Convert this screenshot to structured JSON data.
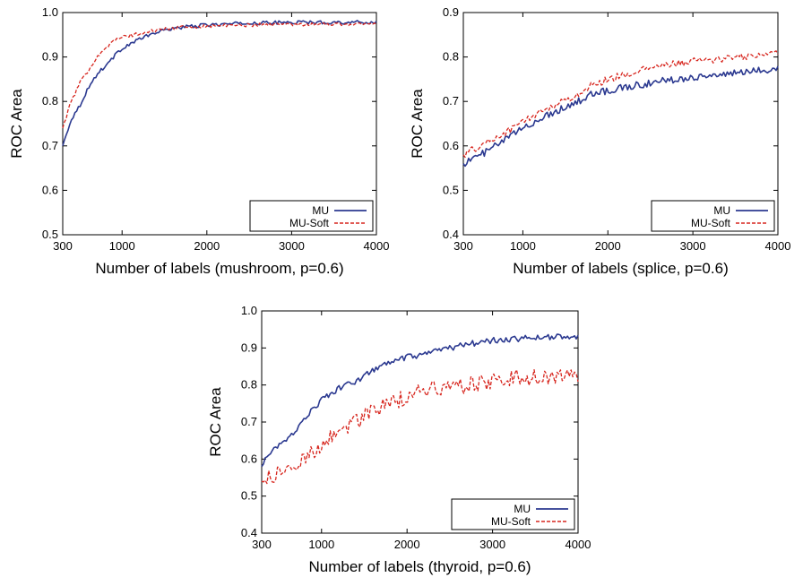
{
  "chart_data": [
    {
      "type": "line",
      "title": "",
      "xlabel": "Number of labels (mushroom, p=0.6)",
      "ylabel": "ROC Area",
      "xlim": [
        300,
        4000
      ],
      "ylim": [
        0.5,
        1.0
      ],
      "x_ticks": [
        300,
        1000,
        2000,
        3000,
        4000
      ],
      "x_tick_labels": [
        "300",
        "1000",
        "2000",
        "3000",
        "4000"
      ],
      "y_ticks": [
        0.5,
        0.6,
        0.7,
        0.8,
        0.9,
        1.0
      ],
      "y_tick_labels": [
        "0.5",
        "0.6",
        "0.7",
        "0.8",
        "0.9",
        "1.0"
      ],
      "grid": false,
      "legend_position": "bottom-right",
      "series": [
        {
          "name": "MU",
          "color": "#2b3990",
          "style": "solid",
          "x": [
            300,
            400,
            500,
            600,
            700,
            800,
            900,
            1000,
            1200,
            1400,
            1600,
            2000,
            2500,
            3000,
            3500,
            4000
          ],
          "y": [
            0.7,
            0.76,
            0.79,
            0.83,
            0.86,
            0.88,
            0.9,
            0.92,
            0.94,
            0.955,
            0.965,
            0.972,
            0.976,
            0.978,
            0.978,
            0.978
          ]
        },
        {
          "name": "MU-Soft",
          "color": "#d7261e",
          "style": "dashed",
          "x": [
            300,
            400,
            500,
            600,
            700,
            800,
            900,
            1000,
            1200,
            1400,
            1600,
            2000,
            2500,
            3000,
            3500,
            4000
          ],
          "y": [
            0.74,
            0.8,
            0.84,
            0.87,
            0.9,
            0.92,
            0.935,
            0.945,
            0.952,
            0.96,
            0.965,
            0.97,
            0.972,
            0.974,
            0.974,
            0.974
          ]
        }
      ]
    },
    {
      "type": "line",
      "title": "",
      "xlabel": "Number of labels (splice, p=0.6)",
      "ylabel": "ROC Area",
      "xlim": [
        300,
        4000
      ],
      "ylim": [
        0.4,
        0.9
      ],
      "x_ticks": [
        300,
        1000,
        2000,
        3000,
        4000
      ],
      "x_tick_labels": [
        "300",
        "1000",
        "2000",
        "3000",
        "4000"
      ],
      "y_ticks": [
        0.4,
        0.5,
        0.6,
        0.7,
        0.8,
        0.9
      ],
      "y_tick_labels": [
        "0.4",
        "0.5",
        "0.6",
        "0.7",
        "0.8",
        "0.9"
      ],
      "grid": false,
      "legend_position": "bottom-right",
      "series": [
        {
          "name": "MU",
          "color": "#2b3990",
          "style": "solid",
          "x": [
            300,
            400,
            600,
            800,
            1000,
            1200,
            1400,
            1600,
            1800,
            2000,
            2300,
            2600,
            3000,
            3300,
            3600,
            4000
          ],
          "y": [
            0.56,
            0.57,
            0.59,
            0.615,
            0.64,
            0.66,
            0.68,
            0.695,
            0.715,
            0.725,
            0.735,
            0.745,
            0.755,
            0.76,
            0.765,
            0.775
          ]
        },
        {
          "name": "MU-Soft",
          "color": "#d7261e",
          "style": "dashed",
          "x": [
            300,
            400,
            600,
            800,
            1000,
            1200,
            1400,
            1600,
            1800,
            2000,
            2300,
            2600,
            3000,
            3300,
            3600,
            4000
          ],
          "y": [
            0.58,
            0.59,
            0.61,
            0.63,
            0.655,
            0.675,
            0.695,
            0.71,
            0.735,
            0.75,
            0.765,
            0.78,
            0.79,
            0.795,
            0.8,
            0.81
          ]
        }
      ]
    },
    {
      "type": "line",
      "title": "",
      "xlabel": "Number of labels (thyroid, p=0.6)",
      "ylabel": "ROC Area",
      "xlim": [
        300,
        4000
      ],
      "ylim": [
        0.4,
        1.0
      ],
      "x_ticks": [
        300,
        1000,
        2000,
        3000,
        4000
      ],
      "x_tick_labels": [
        "300",
        "1000",
        "2000",
        "3000",
        "4000"
      ],
      "y_ticks": [
        0.4,
        0.5,
        0.6,
        0.7,
        0.8,
        0.9,
        1.0
      ],
      "y_tick_labels": [
        "0.4",
        "0.5",
        "0.6",
        "0.7",
        "0.8",
        "0.9",
        "1.0"
      ],
      "grid": false,
      "legend_position": "bottom-right",
      "series": [
        {
          "name": "MU",
          "color": "#2b3990",
          "style": "solid",
          "x": [
            300,
            400,
            600,
            800,
            1000,
            1200,
            1400,
            1600,
            1800,
            2000,
            2200,
            2400,
            2700,
            3000,
            3300,
            3600,
            4000
          ],
          "y": [
            0.58,
            0.62,
            0.65,
            0.71,
            0.76,
            0.79,
            0.81,
            0.84,
            0.86,
            0.875,
            0.88,
            0.895,
            0.91,
            0.92,
            0.925,
            0.93,
            0.93
          ]
        },
        {
          "name": "MU-Soft",
          "color": "#d7261e",
          "style": "dashed",
          "x": [
            300,
            400,
            600,
            800,
            1000,
            1200,
            1400,
            1600,
            1800,
            2000,
            2200,
            2400,
            2700,
            3000,
            3300,
            3600,
            4000
          ],
          "y": [
            0.54,
            0.55,
            0.57,
            0.6,
            0.64,
            0.68,
            0.7,
            0.73,
            0.75,
            0.77,
            0.79,
            0.79,
            0.8,
            0.81,
            0.82,
            0.82,
            0.82
          ]
        }
      ]
    }
  ]
}
